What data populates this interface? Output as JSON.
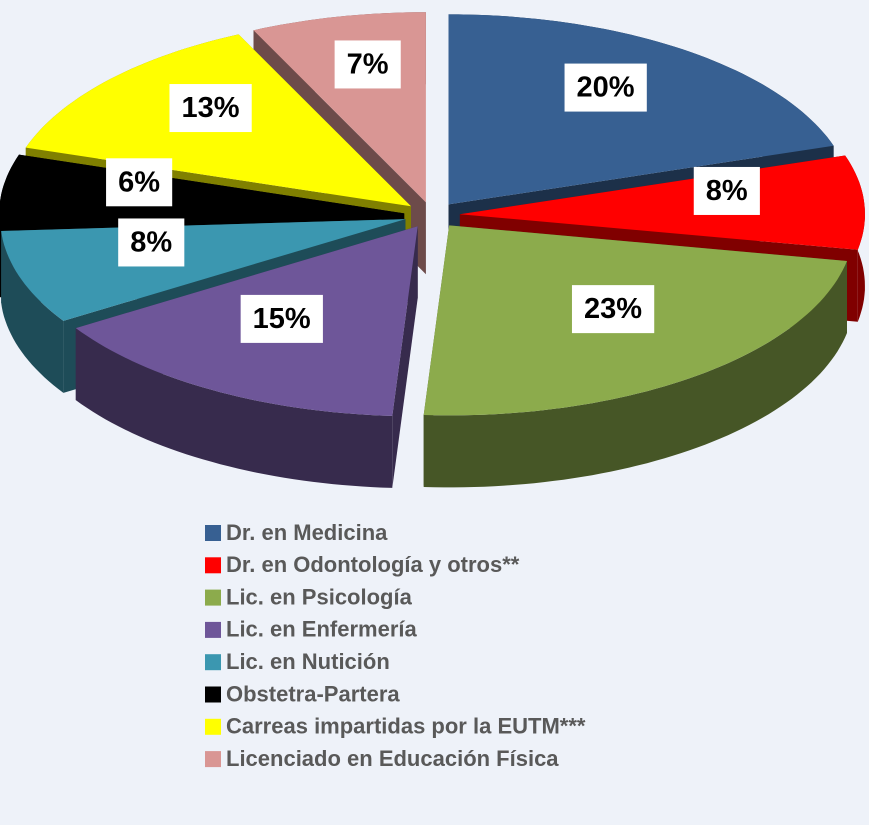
{
  "chart_data": {
    "type": "pie",
    "categories": [
      "Dr. en Medicina",
      "Dr. en Odontología y otros**",
      "Lic. en Psicología",
      "Lic. en Enfermería",
      "Lic. en Nutición",
      "Obstetra-Partera",
      "Carreas impartidas por la EUTM***",
      "Licenciado en Educación Física"
    ],
    "values": [
      20,
      8,
      23,
      15,
      8,
      6,
      13,
      7
    ],
    "value_labels": [
      "20%",
      "8%",
      "23%",
      "15%",
      "8%",
      "6%",
      "13%",
      "7%"
    ],
    "colors": [
      "#376092",
      "#ff0000",
      "#8cab4c",
      "#6e5699",
      "#3b97b0",
      "#000000",
      "#ffff00",
      "#d99694"
    ],
    "legend": "bottom"
  }
}
